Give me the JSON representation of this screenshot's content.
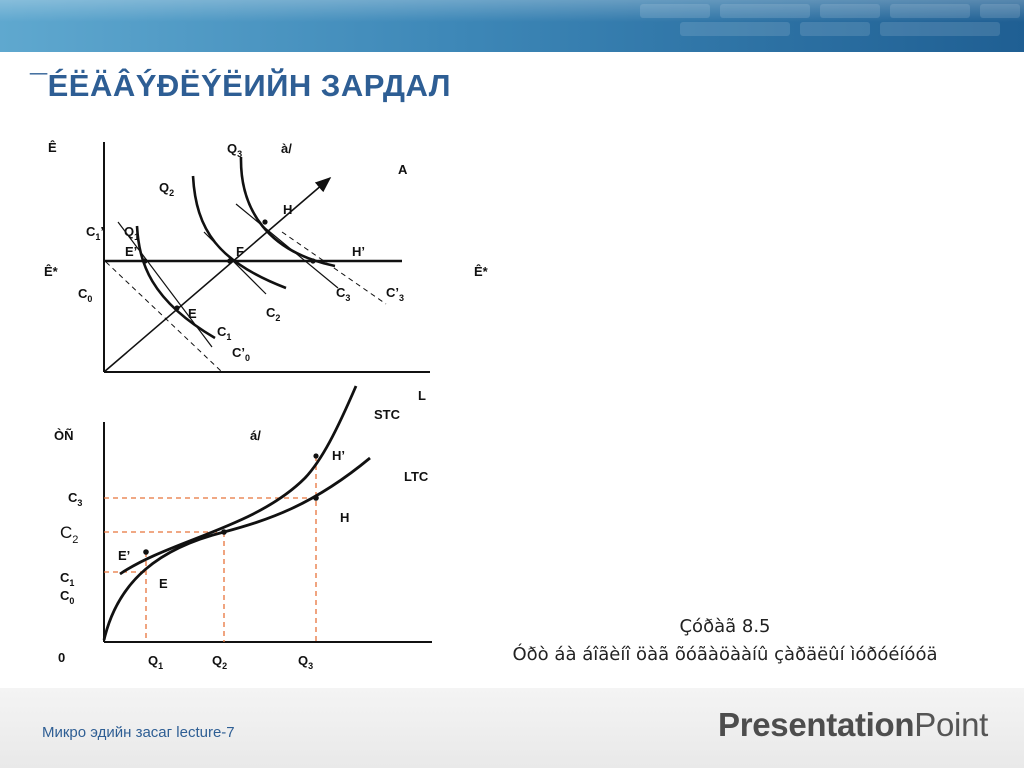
{
  "slide": {
    "title": "¯ÉËÄÂÝÐËÝËИЙН ЗАРДАЛ",
    "caption_line1": "Çóðàã 8.5",
    "caption_line2": "Óðò áà áîãèíî öàã õóãàöààíû çàðäëûí ìóðóéíóóä"
  },
  "footer": {
    "course": "Микро эдийн засаг  lecture-7",
    "brand_bold": "Presentation",
    "brand_light": "Point"
  },
  "top_diagram": {
    "labels": {
      "y_axis": "Ê",
      "x_axis": "L",
      "k_star_left": "Ê*",
      "k_star_right": "Ê*",
      "a_slash": "à/",
      "ray": "A",
      "q1": "Q",
      "q1_sub": "1",
      "q2": "Q",
      "q2_sub": "2",
      "q3": "Q",
      "q3_sub": "3",
      "c0": "C",
      "c0_sub": "0",
      "c1p": "C",
      "c1p_sub": "1",
      "c1p_prime": "’",
      "c1": "C",
      "c1_sub": "1",
      "c0p": "C’",
      "c0p_sub": "0",
      "c2": "C",
      "c2_sub": "2",
      "c3": "C",
      "c3_sub": "3",
      "c3p": "C’",
      "c3p_sub": "3",
      "pt_e": "E",
      "pt_e_prime": "E’",
      "pt_f": "F",
      "pt_h": "H",
      "pt_h_prime": "H’"
    }
  },
  "bottom_diagram": {
    "labels": {
      "y_axis": "ÒÑ",
      "b_slash": "á/",
      "origin": "0",
      "stc": "STC",
      "ltc": "LTC",
      "pt_h_prime": "H’",
      "pt_h": "H",
      "pt_e_prime": "E’",
      "pt_e": "E",
      "c3": "C",
      "c3_sub": "3",
      "c2": "C",
      "c2_sub": "2",
      "c1": "C",
      "c1_sub": "1",
      "c0": "C",
      "c0_sub": "0",
      "q1": "Q",
      "q1_sub": "1",
      "q2": "Q",
      "q2_sub": "2",
      "q3": "Q",
      "q3_sub": "3"
    }
  },
  "colors": {
    "title": "#2e5e94",
    "guide_lines": "#e8743b",
    "curves": "#111111"
  }
}
